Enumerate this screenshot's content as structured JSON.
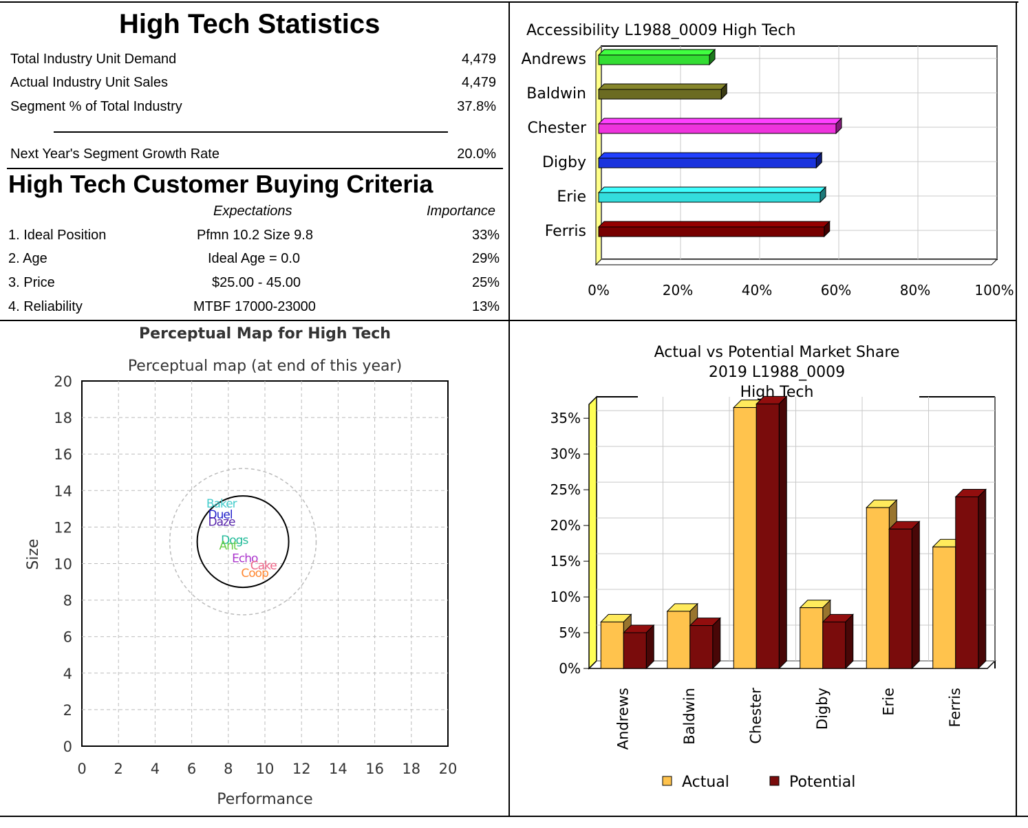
{
  "stats": {
    "title": "High Tech Statistics",
    "rows": [
      {
        "label": "Total Industry Unit Demand",
        "value": "4,479"
      },
      {
        "label": "Actual Industry Unit Sales",
        "value": "4,479"
      },
      {
        "label": "Segment % of Total Industry",
        "value": "37.8%"
      }
    ],
    "growth": {
      "label": "Next Year's Segment Growth Rate",
      "value": "20.0%"
    }
  },
  "criteria": {
    "title": "High Tech Customer Buying Criteria",
    "col_expect": "Expectations",
    "col_importance": "Importance",
    "rows": [
      {
        "label": "1. Ideal Position",
        "expect": "Pfmn 10.2 Size 9.8",
        "importance": "33%"
      },
      {
        "label": "2. Age",
        "expect": "Ideal Age = 0.0",
        "importance": "29%"
      },
      {
        "label": "3. Price",
        "expect": "$25.00 - 45.00",
        "importance": "25%"
      },
      {
        "label": "4. Reliability",
        "expect": "MTBF 17000-23000",
        "importance": "13%"
      }
    ]
  },
  "chart_data": [
    {
      "type": "bar",
      "orientation": "horizontal",
      "title": "Accessibility L1988_0009 High Tech",
      "categories": [
        "Andrews",
        "Baldwin",
        "Chester",
        "Digby",
        "Erie",
        "Ferris"
      ],
      "values": [
        28,
        31,
        60,
        55,
        56,
        57
      ],
      "colors": [
        "#33dd33",
        "#6b6b22",
        "#ee33dd",
        "#1a33dd",
        "#33dddd",
        "#770000"
      ],
      "xticks": [
        "0%",
        "20%",
        "40%",
        "60%",
        "80%",
        "100%"
      ],
      "xlim": [
        0,
        100
      ]
    },
    {
      "type": "scatter",
      "title": "Perceptual Map for High Tech",
      "subtitle": "Perceptual map (at end of this year)",
      "xlabel": "Performance",
      "ylabel": "Size",
      "xlim": [
        0,
        20
      ],
      "ylim": [
        0,
        20
      ],
      "ticks": [
        "0",
        "2",
        "4",
        "6",
        "8",
        "10",
        "12",
        "14",
        "16",
        "18",
        "20"
      ],
      "points": [
        {
          "label": "Baker",
          "x": 6.8,
          "y": 13.3,
          "color": "#44cccc"
        },
        {
          "label": "Duel",
          "x": 6.9,
          "y": 12.7,
          "color": "#2222cc"
        },
        {
          "label": "Daze",
          "x": 6.9,
          "y": 12.3,
          "color": "#5522aa"
        },
        {
          "label": "Dogs",
          "x": 7.6,
          "y": 11.3,
          "color": "#22bb99"
        },
        {
          "label": "Ant",
          "x": 7.5,
          "y": 11.0,
          "color": "#66cc44"
        },
        {
          "label": "Echo",
          "x": 8.2,
          "y": 10.3,
          "color": "#aa33cc"
        },
        {
          "label": "Cake",
          "x": 9.2,
          "y": 9.9,
          "color": "#ee6688"
        },
        {
          "label": "Coop",
          "x": 8.7,
          "y": 9.5,
          "color": "#ff8833"
        }
      ],
      "rough_cut": {
        "cx": 8.8,
        "cy": 11.2,
        "r": 2.5
      },
      "fine_cut": {
        "cx": 8.8,
        "cy": 11.2,
        "r": 4.0
      }
    },
    {
      "type": "bar",
      "title": "Actual vs Potential Market Share",
      "subtitle_1": "2019 L1988_0009",
      "subtitle_2": "High Tech",
      "categories": [
        "Andrews",
        "Baldwin",
        "Chester",
        "Digby",
        "Erie",
        "Ferris"
      ],
      "series": [
        {
          "name": "Actual",
          "values": [
            6.5,
            8.0,
            36.5,
            8.5,
            22.5,
            17.0
          ],
          "color": "#ffc34d"
        },
        {
          "name": "Potential",
          "values": [
            5.0,
            6.0,
            37.0,
            6.5,
            19.5,
            24.0
          ],
          "color": "#7a0c0c"
        }
      ],
      "yticks": [
        "0%",
        "5%",
        "10%",
        "15%",
        "20%",
        "25%",
        "30%",
        "35%"
      ],
      "ylim": [
        0,
        38
      ]
    }
  ]
}
